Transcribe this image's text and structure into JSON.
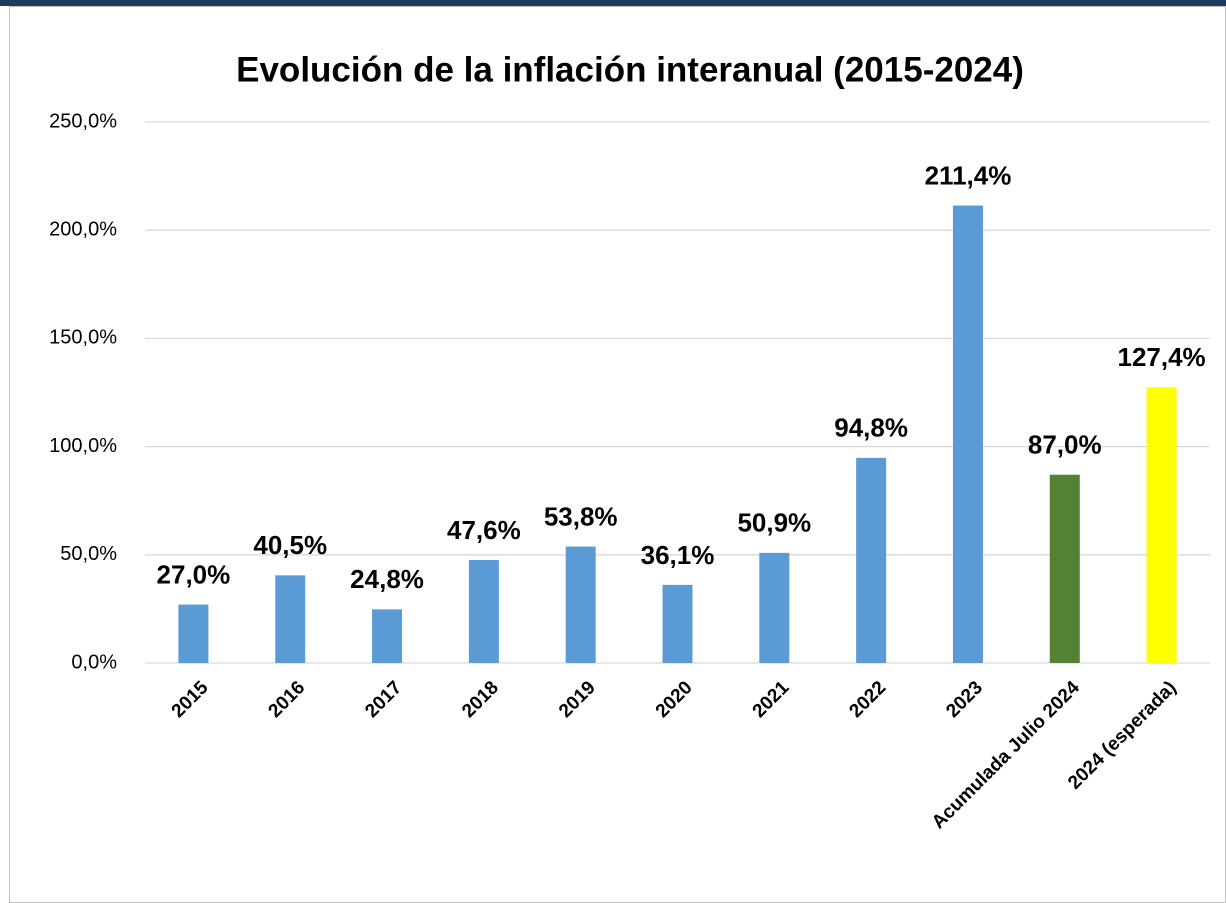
{
  "chart_data": {
    "type": "bar",
    "title": "Evolución de la inflación interanual (2015-2024)",
    "categories": [
      "2015",
      "2016",
      "2017",
      "2018",
      "2019",
      "2020",
      "2021",
      "2022",
      "2023",
      "Acumulada Julio 2024",
      "2024 (esperada)"
    ],
    "values": [
      27.0,
      40.5,
      24.8,
      47.6,
      53.8,
      36.1,
      50.9,
      94.8,
      211.4,
      87.0,
      127.4
    ],
    "value_labels": [
      "27,0%",
      "40,5%",
      "24,8%",
      "47,6%",
      "53,8%",
      "36,1%",
      "50,9%",
      "94,8%",
      "211,4%",
      "87,0%",
      "127,4%"
    ],
    "colors": [
      "#5b9bd5",
      "#5b9bd5",
      "#5b9bd5",
      "#5b9bd5",
      "#5b9bd5",
      "#5b9bd5",
      "#5b9bd5",
      "#5b9bd5",
      "#5b9bd5",
      "#548235",
      "#ffff00"
    ],
    "ylim": [
      0,
      250
    ],
    "yticks": [
      {
        "value": 0,
        "label": "0,0%"
      },
      {
        "value": 50,
        "label": "50,0%"
      },
      {
        "value": 100,
        "label": "100,0%"
      },
      {
        "value": 150,
        "label": "150,0%"
      },
      {
        "value": 200,
        "label": "200,0%"
      },
      {
        "value": 250,
        "label": "250,0%"
      }
    ],
    "grid": true
  }
}
